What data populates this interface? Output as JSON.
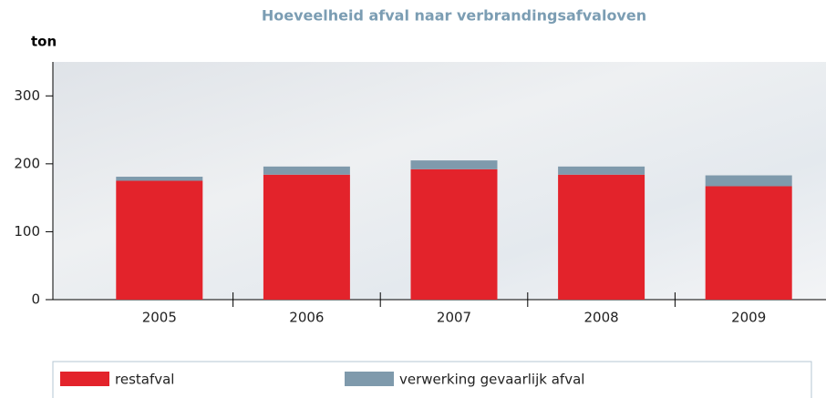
{
  "chart_data": {
    "type": "stacked-bar",
    "title": "Hoeveelheid afval naar verbrandingsafvaloven",
    "y_label": "ton",
    "categories": [
      "2005",
      "2006",
      "2007",
      "2008",
      "2009"
    ],
    "series": [
      {
        "name": "restafval",
        "color": "#e3232b",
        "values": [
          175,
          184,
          192,
          184,
          167
        ]
      },
      {
        "name": "verwerking gevaarlijk afval",
        "color": "#7f9aac",
        "values": [
          6,
          12,
          13,
          12,
          16
        ]
      }
    ],
    "ylim": [
      0,
      350
    ],
    "yticks": [
      0,
      100,
      200,
      300
    ]
  }
}
